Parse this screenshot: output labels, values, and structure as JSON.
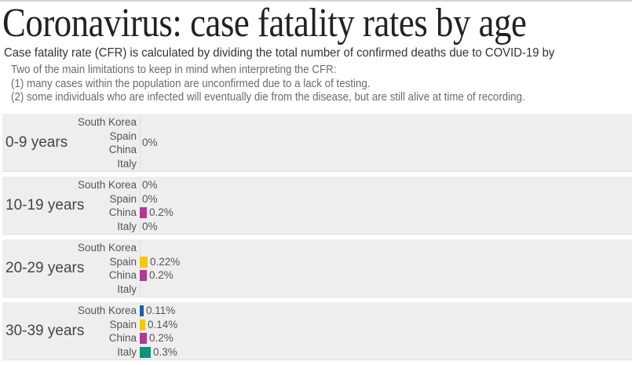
{
  "title": "Coronavirus: case fatality rates by age",
  "subtitle": "Case fatality rate (CFR) is calculated by dividing the total number of confirmed deaths due to COVID-19 by",
  "notes": [
    "Two of the main limitations to keep in mind when interpreting the CFR:",
    "(1) many cases within the population are unconfirmed due to a lack of testing.",
    "(2) some individuals who are infected will eventually die from the disease, but are still alive at time of recording."
  ],
  "colors": {
    "South Korea": "#1a5ea8",
    "Spain": "#f2c80f",
    "China": "#b2398f",
    "Italy": "#12917a"
  },
  "chart_data": {
    "type": "bar",
    "orientation": "horizontal",
    "title": "Coronavirus: case fatality rates by age",
    "unit": "%",
    "countries": [
      "South Korea",
      "Spain",
      "China",
      "Italy"
    ],
    "groups": [
      {
        "label": "0-9 years",
        "shared_label": "0%",
        "values": [
          null,
          null,
          0,
          null
        ],
        "labels": [
          "",
          "",
          "",
          ""
        ]
      },
      {
        "label": "10-19 years",
        "values": [
          0,
          0,
          0.2,
          0
        ],
        "labels": [
          "0%",
          "0%",
          "0.2%",
          "0%"
        ]
      },
      {
        "label": "20-29 years",
        "values": [
          null,
          0.22,
          0.2,
          null
        ],
        "labels": [
          "",
          "0.22%",
          "0.2%",
          ""
        ]
      },
      {
        "label": "30-39 years",
        "values": [
          0.11,
          0.14,
          0.2,
          0.3
        ],
        "labels": [
          "0.11%",
          "0.14%",
          "0.2%",
          "0.3%"
        ]
      }
    ],
    "xlim": [
      0,
      15
    ],
    "grid": false,
    "legend": "none"
  }
}
